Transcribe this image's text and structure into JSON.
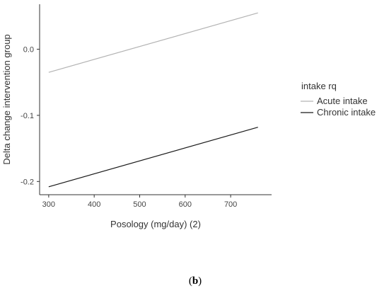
{
  "chart_data": {
    "type": "line",
    "title": "",
    "xlabel": "Posology (mg/day) (2)",
    "ylabel": "Delta change intervention group",
    "xlim": [
      280,
      790
    ],
    "ylim": [
      -0.22,
      0.068
    ],
    "xticks": [
      300,
      400,
      500,
      600,
      700
    ],
    "yticks": [
      0.0,
      -0.1,
      -0.2
    ],
    "ytick_labels": [
      "0.0",
      "-0.1",
      "-0.2"
    ],
    "grid": false,
    "legend": {
      "title": "intake rq",
      "placement": "right"
    },
    "series": [
      {
        "name": "Acute intake",
        "color": "#b3b3b3",
        "x": [
          300,
          760
        ],
        "y": [
          -0.035,
          0.055
        ]
      },
      {
        "name": "Chronic intake",
        "color": "#1a1a1a",
        "x": [
          300,
          760
        ],
        "y": [
          -0.208,
          -0.118
        ]
      }
    ]
  },
  "caption": {
    "open": "(",
    "label": "b",
    "close": ")"
  }
}
